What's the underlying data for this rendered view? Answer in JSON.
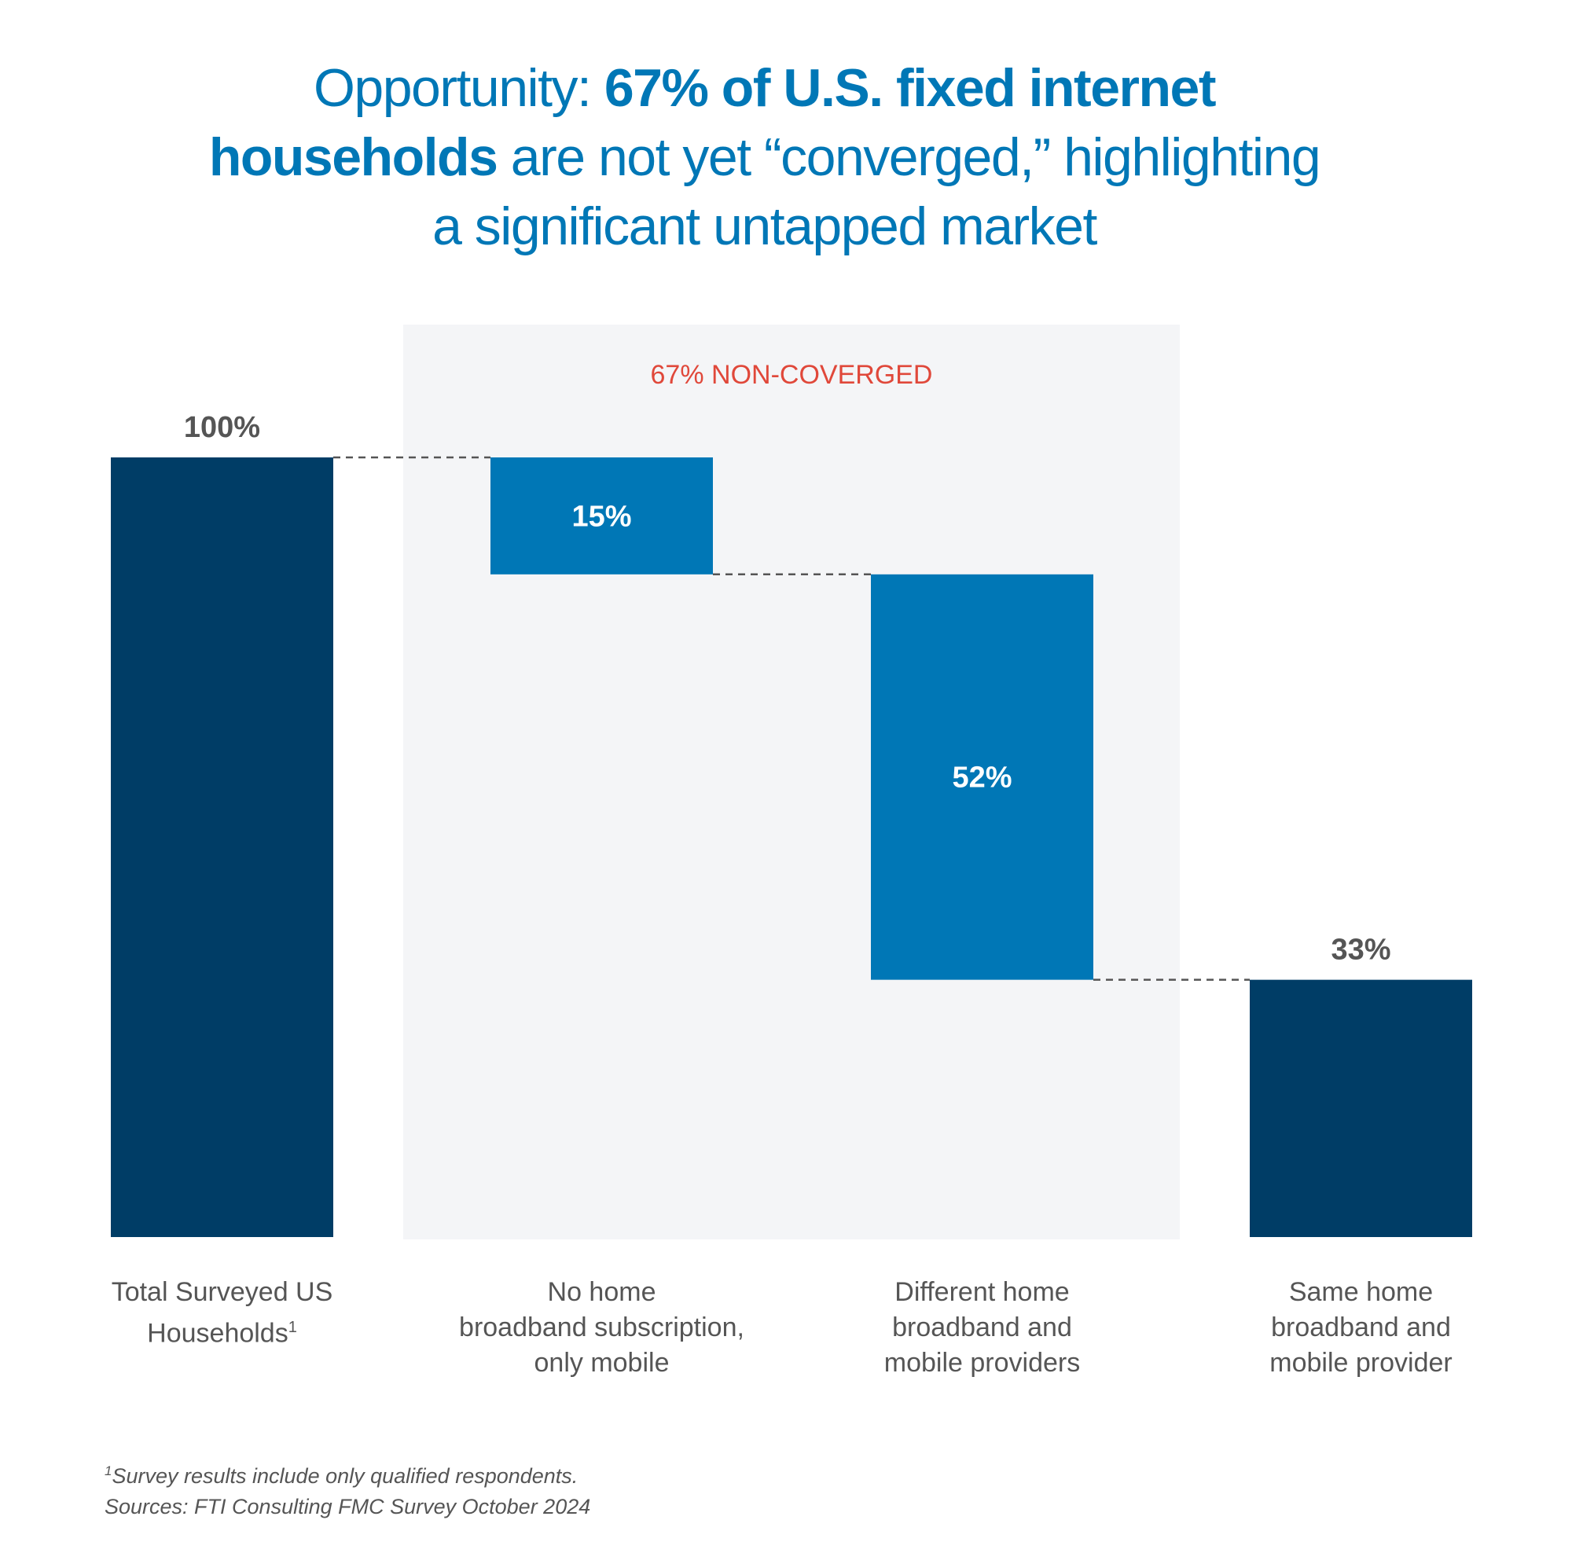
{
  "title": {
    "line1_normal": "Opportunity: ",
    "line1_bold": "67% of U.S. fixed internet",
    "line2_bold": "households",
    "line2_normal": " are not yet “converged,” highlighting",
    "line3": "a significant untapped market"
  },
  "chart_data": {
    "type": "waterfall",
    "categories": [
      "Total Surveyed US Households",
      "No home broadband subscription, only mobile",
      "Different home broadband and mobile providers",
      "Same home broadband and mobile provider"
    ],
    "bars": [
      {
        "label": "100%",
        "start": 0,
        "end": 100,
        "kind": "total"
      },
      {
        "label": "15%",
        "start": 85,
        "end": 100,
        "kind": "step"
      },
      {
        "label": "52%",
        "start": 33,
        "end": 85,
        "kind": "step"
      },
      {
        "label": "33%",
        "start": 0,
        "end": 33,
        "kind": "total"
      }
    ],
    "ylim": [
      0,
      100
    ],
    "annotation": "67% NON-COVERGED",
    "colors": {
      "total": "#003d66",
      "step": "#0077b6",
      "band": "#f4f5f7",
      "annotation": "#e0483a",
      "connector": "#555555"
    }
  },
  "labels": [
    {
      "lines": [
        "Total Surveyed US",
        "Households"
      ],
      "sup": "1"
    },
    {
      "lines": [
        "No home",
        "broadband subscription,",
        "only mobile"
      ]
    },
    {
      "lines": [
        "Different home",
        "broadband and",
        "mobile providers"
      ]
    },
    {
      "lines": [
        "Same home",
        "broadband and",
        "mobile provider"
      ]
    }
  ],
  "footnotes": {
    "sup": "1",
    "note": "Survey results include only qualified respondents.",
    "source": "Sources: FTI Consulting FMC Survey October 2024"
  }
}
